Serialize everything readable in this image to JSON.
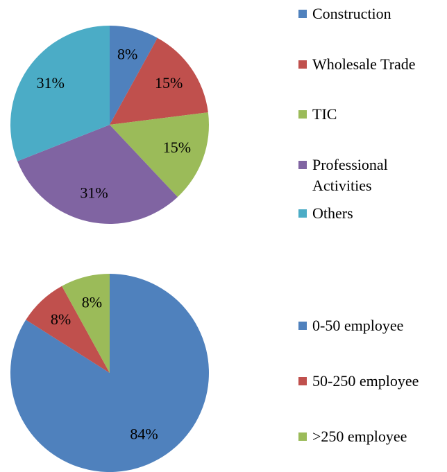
{
  "chart_data": [
    {
      "type": "pie",
      "categories": [
        "Construction",
        "Wholesale Trade",
        "TIC",
        "Professional Activities",
        "Others"
      ],
      "values": [
        8,
        15,
        15,
        31,
        31
      ],
      "value_labels": [
        "8%",
        "15%",
        "15%",
        "31%",
        "31%"
      ],
      "colors": [
        "#4f81bd",
        "#c0504d",
        "#9bbb59",
        "#8064a2",
        "#4bacc6"
      ]
    },
    {
      "type": "pie",
      "categories": [
        "0-50 employee",
        "50-250 employee",
        ">250 employee"
      ],
      "values": [
        84,
        8,
        8
      ],
      "value_labels": [
        "84%",
        "8%",
        "8%"
      ],
      "colors": [
        "#4f81bd",
        "#c0504d",
        "#9bbb59"
      ]
    }
  ]
}
